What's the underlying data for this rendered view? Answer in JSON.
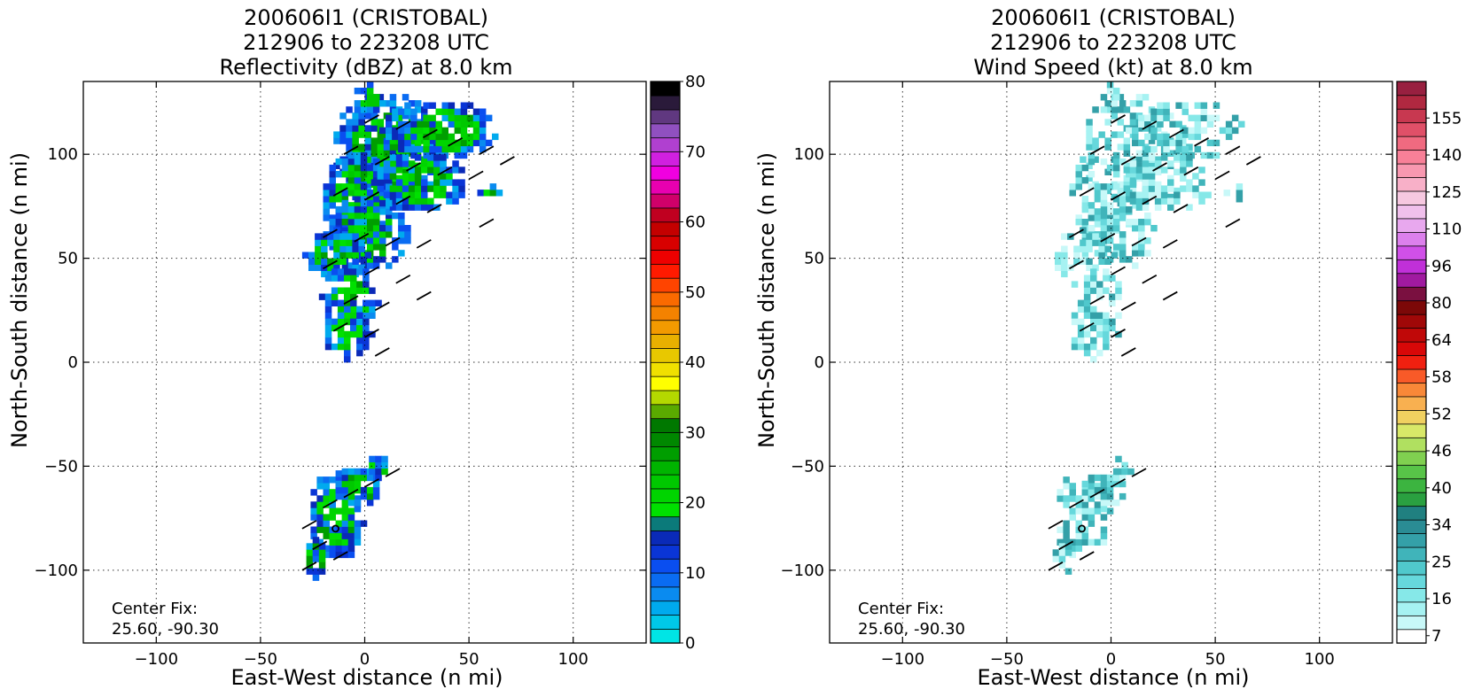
{
  "chart_data": [
    {
      "type": "heatmap",
      "title": "200606I1 (CRISTOBAL)",
      "subtitle_line2": "212906 to 223208 UTC",
      "subtitle_line3": "Reflectivity (dBZ) at 8.0 km",
      "xlabel": "East-West distance (n mi)",
      "ylabel": "North-South distance (n mi)",
      "xlim": [
        -135,
        135
      ],
      "ylim": [
        -135,
        135
      ],
      "xticks": [
        -100,
        -50,
        0,
        50,
        100
      ],
      "yticks": [
        -100,
        -50,
        0,
        50,
        100
      ],
      "grid": true,
      "annotation_line1": "Center Fix:",
      "annotation_line2": "25.60, -90.30",
      "colorbar": {
        "ticks": [
          "0",
          "10",
          "20",
          "30",
          "40",
          "50",
          "60",
          "70",
          "80"
        ],
        "colors": [
          "#00e5e5",
          "#00c8e8",
          "#00aaee",
          "#0a8bf0",
          "#0a6cf2",
          "#0a4ef0",
          "#0a35d6",
          "#0a2ab8",
          "#0b7a7a",
          "#00e000",
          "#00d400",
          "#00c800",
          "#00b400",
          "#009e00",
          "#008800",
          "#007800",
          "#5aaa00",
          "#b4d800",
          "#ffff00",
          "#f0e000",
          "#e8c800",
          "#e8b000",
          "#f29a00",
          "#f48200",
          "#fa6a00",
          "#ff4400",
          "#ff1a00",
          "#ee0000",
          "#d80000",
          "#c40000",
          "#c00020",
          "#d0006a",
          "#e800b0",
          "#f000e0",
          "#d020e0",
          "#b040d0",
          "#9050c0",
          "#603880",
          "#2a1a3a",
          "#000000"
        ]
      }
    },
    {
      "type": "heatmap",
      "title": "200606I1 (CRISTOBAL)",
      "subtitle_line2": "212906 to 223208 UTC",
      "subtitle_line3": "Wind Speed (kt) at 8.0 km",
      "xlabel": "East-West distance (n mi)",
      "ylabel": "North-South distance (n mi)",
      "xlim": [
        -135,
        135
      ],
      "ylim": [
        -135,
        135
      ],
      "xticks": [
        -100,
        -50,
        0,
        50,
        100
      ],
      "yticks": [
        -100,
        -50,
        0,
        50,
        100
      ],
      "grid": true,
      "annotation_line1": "Center Fix:",
      "annotation_line2": "25.60, -90.30",
      "colorbar": {
        "ticks": [
          "7",
          "16",
          "25",
          "34",
          "40",
          "46",
          "52",
          "58",
          "64",
          "80",
          "96",
          "110",
          "125",
          "140",
          "155"
        ],
        "colors": [
          "#ffffff",
          "#c8f8f8",
          "#a6f2f2",
          "#86e8e8",
          "#66d8dc",
          "#50c8cc",
          "#40b4ba",
          "#34a0a8",
          "#2a8c94",
          "#208080",
          "#2aa040",
          "#3cb440",
          "#58c448",
          "#80d050",
          "#b0e060",
          "#d8e868",
          "#f0d060",
          "#f8b050",
          "#f88838",
          "#f85a28",
          "#f02010",
          "#d80808",
          "#c00808",
          "#a00808",
          "#7c0808",
          "#7a1040",
          "#a01aa0",
          "#c030d8",
          "#d050e8",
          "#dc80ec",
          "#e8a8ee",
          "#f0c0ec",
          "#f6c8e0",
          "#f8b0c8",
          "#f898b0",
          "#f88098",
          "#f06a80",
          "#e05068",
          "#c83850",
          "#b02840",
          "#982040"
        ]
      }
    }
  ]
}
